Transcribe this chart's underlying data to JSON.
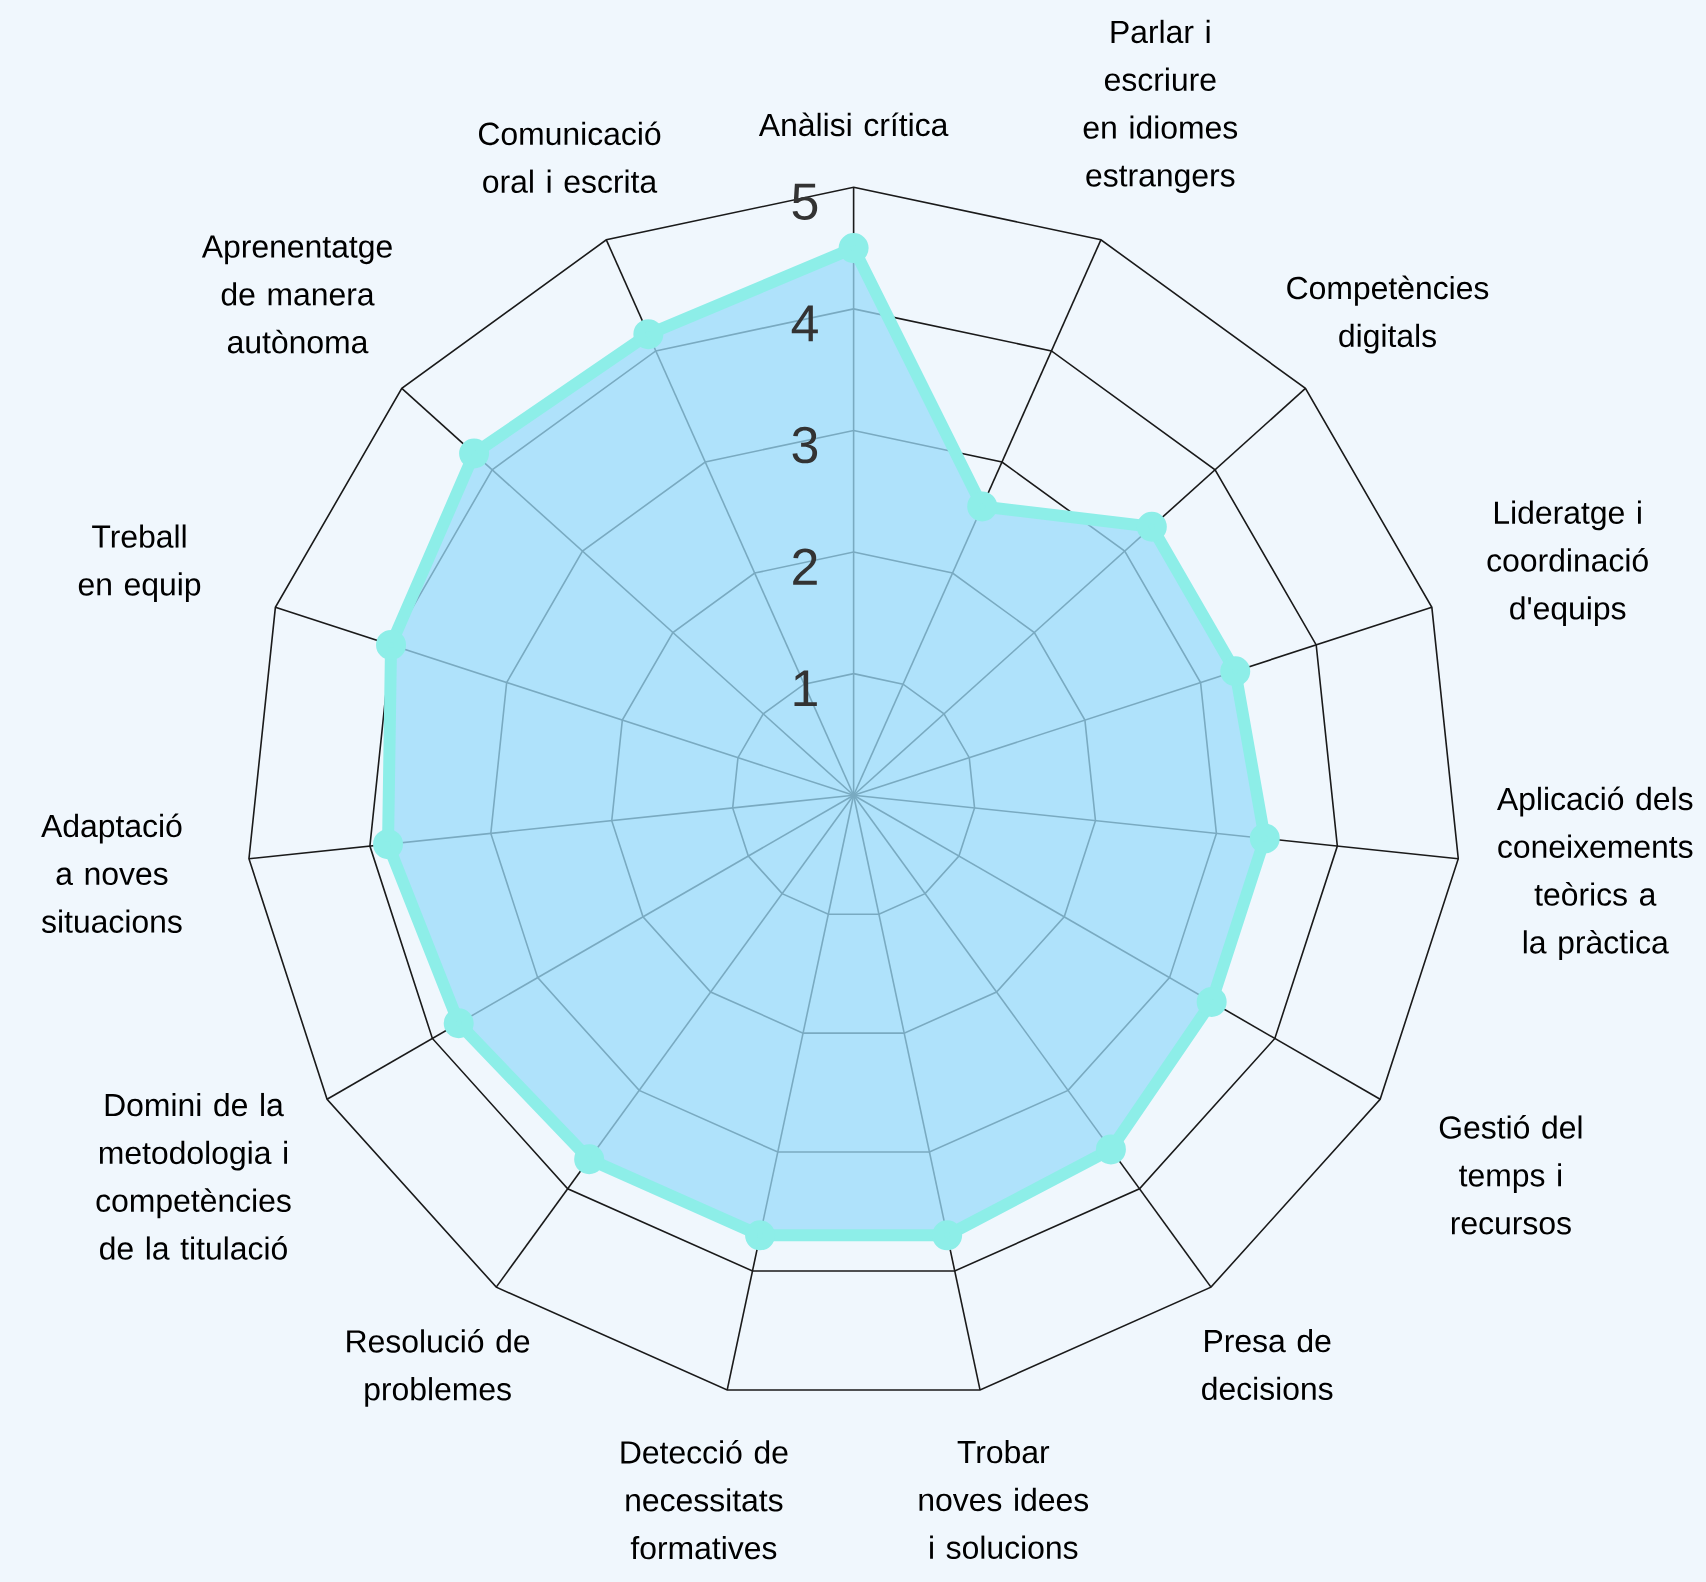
{
  "chart_data": {
    "type": "radar",
    "categories": [
      "Anàlisi crítica",
      "Parlar i escriure en idiomes estrangers",
      "Competències digitals",
      "Lideratge i coordinació d'equips",
      "Aplicació dels coneixements teòrics a la pràctica",
      "Gestió del temps i recursos",
      "Presa de decisions",
      "Trobar noves idees i solucions",
      "Detecció de necessitats formatives",
      "Resolució de problemes",
      "Domini de la metodologia i competències de la titulació",
      "Adaptació a noves situacions",
      "Treball en equip",
      "Aprenentatge de manera autònoma",
      "Comunicació oral i escrita"
    ],
    "series": [
      {
        "color": "#8deee8",
        "values": [
          4.5,
          2.6,
          3.3,
          3.3,
          3.4,
          3.4,
          3.6,
          3.7,
          3.7,
          3.7,
          3.75,
          3.85,
          4.0,
          4.2,
          4.15
        ]
      }
    ],
    "ylim": [
      0,
      5
    ],
    "yticks": [
      1,
      2,
      3,
      4,
      5
    ],
    "marker": "circle",
    "legend": false,
    "grid": true
  }
}
